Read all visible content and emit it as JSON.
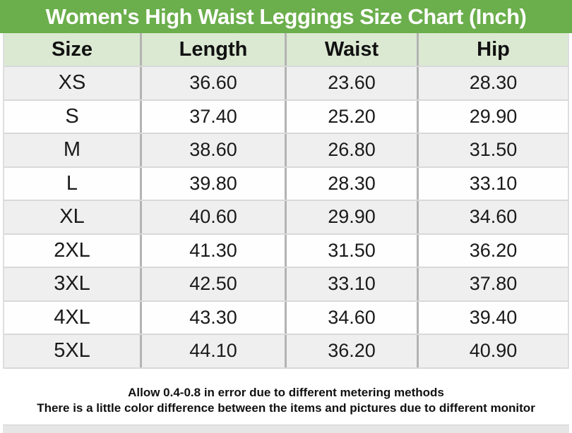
{
  "title": "Women's High Waist Leggings Size Chart (Inch)",
  "chart_data": {
    "type": "table",
    "unit": "Inch",
    "columns": [
      "Size",
      "Length",
      "Waist",
      "Hip"
    ],
    "rows": [
      [
        "XS",
        "36.60",
        "23.60",
        "28.30"
      ],
      [
        "S",
        "37.40",
        "25.20",
        "29.90"
      ],
      [
        "M",
        "38.60",
        "26.80",
        "31.50"
      ],
      [
        "L",
        "39.80",
        "28.30",
        "33.10"
      ],
      [
        "XL",
        "40.60",
        "29.90",
        "34.60"
      ],
      [
        "2XL",
        "41.30",
        "31.50",
        "36.20"
      ],
      [
        "3XL",
        "42.50",
        "33.10",
        "37.80"
      ],
      [
        "4XL",
        "43.30",
        "34.60",
        "39.40"
      ],
      [
        "5XL",
        "44.10",
        "36.20",
        "40.90"
      ]
    ]
  },
  "footer": {
    "line1": "Allow 0.4-0.8 in error due to different metering methods",
    "line2": "There is a little color difference between the items and pictures due to different monitor"
  },
  "colors": {
    "title_bg": "#6bae4c",
    "title_text": "#ffffff",
    "header_bg": "#dbe9d3",
    "row_alt_bg": "#efefef",
    "row_bg": "#fefefe",
    "column_divider": "#b3b3b3",
    "row_divider": "#d9d9d9",
    "text": "#1a1a1a"
  }
}
